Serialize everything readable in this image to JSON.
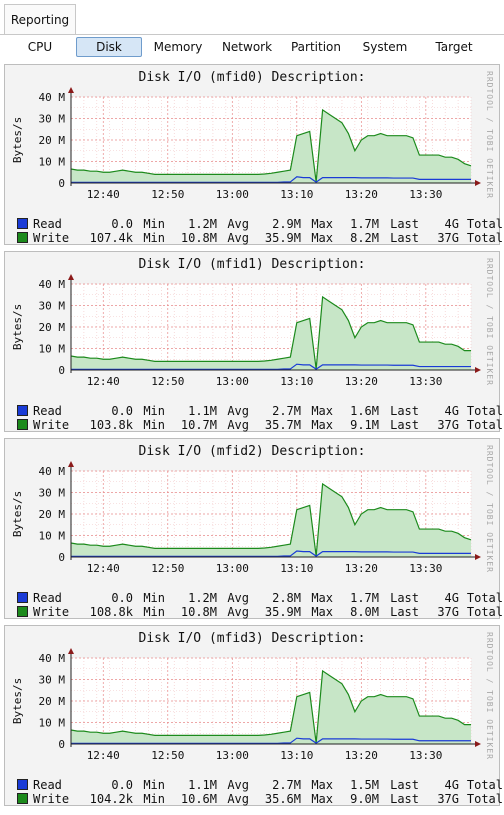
{
  "header": {
    "section_tab": "Reporting",
    "tabs": [
      {
        "label": "CPU",
        "active": false
      },
      {
        "label": "Disk",
        "active": true
      },
      {
        "label": "Memory",
        "active": false
      },
      {
        "label": "Network",
        "active": false
      },
      {
        "label": "Partition",
        "active": false
      },
      {
        "label": "System",
        "active": false
      },
      {
        "label": "Target",
        "active": false
      }
    ]
  },
  "colors": {
    "read": "#1a3bd6",
    "write": "#1c8a1c",
    "write_fill": "#c7e6c7",
    "grid": "#e88a8a"
  },
  "chart_data": [
    {
      "type": "area",
      "title": "Disk I/O (mfid0) Description:",
      "ylabel": "Bytes/s",
      "watermark": "RRDTOOL / TOBI OETIKER",
      "yticks": [
        "0",
        "10 M",
        "20 M",
        "30 M",
        "40 M"
      ],
      "ylim": [
        0,
        40
      ],
      "xticks": [
        "12:40",
        "12:50",
        "13:00",
        "13:10",
        "13:20",
        "13:30"
      ],
      "x": [
        "12:35",
        "12:36",
        "12:37",
        "12:38",
        "12:39",
        "12:40",
        "12:41",
        "12:42",
        "12:43",
        "12:44",
        "12:45",
        "12:46",
        "12:47",
        "12:48",
        "12:49",
        "12:50",
        "12:51",
        "12:52",
        "12:53",
        "12:54",
        "12:55",
        "12:56",
        "12:57",
        "12:58",
        "12:59",
        "13:00",
        "13:01",
        "13:02",
        "13:03",
        "13:04",
        "13:05",
        "13:06",
        "13:07",
        "13:08",
        "13:09",
        "13:10",
        "13:11",
        "13:12",
        "13:13",
        "13:14",
        "13:15",
        "13:16",
        "13:17",
        "13:18",
        "13:19",
        "13:20",
        "13:21",
        "13:22",
        "13:23",
        "13:24",
        "13:25",
        "13:26",
        "13:27",
        "13:28",
        "13:29",
        "13:30",
        "13:31",
        "13:32",
        "13:33",
        "13:34",
        "13:35",
        "13:36",
        "13:37"
      ],
      "series": [
        {
          "name": "Read",
          "values": [
            0.3,
            0.3,
            0.3,
            0.3,
            0.3,
            0.3,
            0.3,
            0.3,
            0.3,
            0.3,
            0.3,
            0.3,
            0.3,
            0.3,
            0.3,
            0.3,
            0.3,
            0.3,
            0.3,
            0.3,
            0.3,
            0.3,
            0.3,
            0.3,
            0.3,
            0.3,
            0.3,
            0.3,
            0.3,
            0.3,
            0.3,
            0.3,
            0.3,
            0.5,
            0.5,
            2.9,
            2.5,
            2.5,
            0.4,
            2.5,
            2.5,
            2.5,
            2.5,
            2.5,
            2.5,
            2.4,
            2.4,
            2.4,
            2.4,
            2.4,
            2.3,
            2.3,
            2.3,
            2.3,
            1.7,
            1.7,
            1.7,
            1.7,
            1.7,
            1.7,
            1.7,
            1.7,
            1.7
          ]
        },
        {
          "name": "Write",
          "values": [
            6.5,
            6,
            6,
            5.5,
            5.5,
            5,
            5,
            5.5,
            6,
            5.5,
            5,
            5,
            4.5,
            4,
            4,
            4,
            4,
            4,
            4,
            4,
            4,
            4,
            4,
            4,
            4,
            4,
            4,
            4,
            4,
            4,
            4.2,
            4.5,
            5,
            5.5,
            6,
            22,
            23,
            24,
            0.5,
            34,
            32,
            30,
            28,
            23,
            15,
            20,
            22,
            22,
            23,
            22,
            22,
            22,
            22,
            21,
            13,
            13,
            13,
            13,
            12,
            12,
            11,
            9,
            8
          ]
        }
      ],
      "legend": [
        {
          "name": "Read",
          "min": "0.0",
          "avg": "1.2M",
          "max": "2.9M",
          "last": "1.7M",
          "total": "4G"
        },
        {
          "name": "Write",
          "min": "107.4k",
          "avg": "10.8M",
          "max": "35.9M",
          "last": "8.2M",
          "total": "37G"
        }
      ]
    },
    {
      "type": "area",
      "title": "Disk I/O (mfid1) Description:",
      "ylabel": "Bytes/s",
      "watermark": "RRDTOOL / TOBI OETIKER",
      "yticks": [
        "0",
        "10 M",
        "20 M",
        "30 M",
        "40 M"
      ],
      "ylim": [
        0,
        40
      ],
      "xticks": [
        "12:40",
        "12:50",
        "13:00",
        "13:10",
        "13:20",
        "13:30"
      ],
      "x": [
        "12:35",
        "12:36",
        "12:37",
        "12:38",
        "12:39",
        "12:40",
        "12:41",
        "12:42",
        "12:43",
        "12:44",
        "12:45",
        "12:46",
        "12:47",
        "12:48",
        "12:49",
        "12:50",
        "12:51",
        "12:52",
        "12:53",
        "12:54",
        "12:55",
        "12:56",
        "12:57",
        "12:58",
        "12:59",
        "13:00",
        "13:01",
        "13:02",
        "13:03",
        "13:04",
        "13:05",
        "13:06",
        "13:07",
        "13:08",
        "13:09",
        "13:10",
        "13:11",
        "13:12",
        "13:13",
        "13:14",
        "13:15",
        "13:16",
        "13:17",
        "13:18",
        "13:19",
        "13:20",
        "13:21",
        "13:22",
        "13:23",
        "13:24",
        "13:25",
        "13:26",
        "13:27",
        "13:28",
        "13:29",
        "13:30",
        "13:31",
        "13:32",
        "13:33",
        "13:34",
        "13:35",
        "13:36",
        "13:37"
      ],
      "series": [
        {
          "name": "Read",
          "values": [
            0.3,
            0.3,
            0.3,
            0.3,
            0.3,
            0.3,
            0.3,
            0.3,
            0.3,
            0.3,
            0.3,
            0.3,
            0.3,
            0.3,
            0.3,
            0.3,
            0.3,
            0.3,
            0.3,
            0.3,
            0.3,
            0.3,
            0.3,
            0.3,
            0.3,
            0.3,
            0.3,
            0.3,
            0.3,
            0.3,
            0.3,
            0.3,
            0.3,
            0.5,
            0.5,
            2.7,
            2.4,
            2.4,
            0.4,
            2.4,
            2.4,
            2.4,
            2.4,
            2.4,
            2.4,
            2.3,
            2.3,
            2.3,
            2.3,
            2.3,
            2.2,
            2.2,
            2.2,
            2.2,
            1.6,
            1.6,
            1.6,
            1.6,
            1.6,
            1.6,
            1.6,
            1.6,
            1.6
          ]
        },
        {
          "name": "Write",
          "values": [
            6.5,
            6,
            6,
            5.5,
            5.5,
            5,
            5,
            5.5,
            6,
            5.5,
            5,
            5,
            4.5,
            4,
            4,
            4,
            4,
            4,
            4,
            4,
            4,
            4,
            4,
            4,
            4,
            4,
            4,
            4,
            4,
            4,
            4.2,
            4.5,
            5,
            5.5,
            6,
            22,
            23,
            24,
            0.5,
            34,
            32,
            30,
            28,
            23,
            15,
            20,
            22,
            22,
            23,
            22,
            22,
            22,
            22,
            21,
            13,
            13,
            13,
            13,
            12,
            12,
            11,
            9,
            9
          ]
        }
      ],
      "legend": [
        {
          "name": "Read",
          "min": "0.0",
          "avg": "1.1M",
          "max": "2.7M",
          "last": "1.6M",
          "total": "4G"
        },
        {
          "name": "Write",
          "min": "103.8k",
          "avg": "10.7M",
          "max": "35.7M",
          "last": "9.1M",
          "total": "37G"
        }
      ]
    },
    {
      "type": "area",
      "title": "Disk I/O (mfid2) Description:",
      "ylabel": "Bytes/s",
      "watermark": "RRDTOOL / TOBI OETIKER",
      "yticks": [
        "0",
        "10 M",
        "20 M",
        "30 M",
        "40 M"
      ],
      "ylim": [
        0,
        40
      ],
      "xticks": [
        "12:40",
        "12:50",
        "13:00",
        "13:10",
        "13:20",
        "13:30"
      ],
      "x": [
        "12:35",
        "12:36",
        "12:37",
        "12:38",
        "12:39",
        "12:40",
        "12:41",
        "12:42",
        "12:43",
        "12:44",
        "12:45",
        "12:46",
        "12:47",
        "12:48",
        "12:49",
        "12:50",
        "12:51",
        "12:52",
        "12:53",
        "12:54",
        "12:55",
        "12:56",
        "12:57",
        "12:58",
        "12:59",
        "13:00",
        "13:01",
        "13:02",
        "13:03",
        "13:04",
        "13:05",
        "13:06",
        "13:07",
        "13:08",
        "13:09",
        "13:10",
        "13:11",
        "13:12",
        "13:13",
        "13:14",
        "13:15",
        "13:16",
        "13:17",
        "13:18",
        "13:19",
        "13:20",
        "13:21",
        "13:22",
        "13:23",
        "13:24",
        "13:25",
        "13:26",
        "13:27",
        "13:28",
        "13:29",
        "13:30",
        "13:31",
        "13:32",
        "13:33",
        "13:34",
        "13:35",
        "13:36",
        "13:37"
      ],
      "series": [
        {
          "name": "Read",
          "values": [
            0.3,
            0.3,
            0.3,
            0.3,
            0.3,
            0.3,
            0.3,
            0.3,
            0.3,
            0.3,
            0.3,
            0.3,
            0.3,
            0.3,
            0.3,
            0.3,
            0.3,
            0.3,
            0.3,
            0.3,
            0.3,
            0.3,
            0.3,
            0.3,
            0.3,
            0.3,
            0.3,
            0.3,
            0.3,
            0.3,
            0.3,
            0.3,
            0.3,
            0.5,
            0.5,
            2.8,
            2.5,
            2.5,
            0.4,
            2.5,
            2.5,
            2.5,
            2.5,
            2.5,
            2.5,
            2.4,
            2.4,
            2.4,
            2.4,
            2.4,
            2.3,
            2.3,
            2.3,
            2.3,
            1.7,
            1.7,
            1.7,
            1.7,
            1.7,
            1.7,
            1.7,
            1.7,
            1.7
          ]
        },
        {
          "name": "Write",
          "values": [
            6.5,
            6,
            6,
            5.5,
            5.5,
            5,
            5,
            5.5,
            6,
            5.5,
            5,
            5,
            4.5,
            4,
            4,
            4,
            4,
            4,
            4,
            4,
            4,
            4,
            4,
            4,
            4,
            4,
            4,
            4,
            4,
            4,
            4.2,
            4.5,
            5,
            5.5,
            6,
            22,
            23,
            24,
            0.5,
            34,
            32,
            30,
            28,
            23,
            15,
            20,
            22,
            22,
            23,
            22,
            22,
            22,
            22,
            21,
            13,
            13,
            13,
            13,
            12,
            12,
            11,
            9,
            8
          ]
        }
      ],
      "legend": [
        {
          "name": "Read",
          "min": "0.0",
          "avg": "1.2M",
          "max": "2.8M",
          "last": "1.7M",
          "total": "4G"
        },
        {
          "name": "Write",
          "min": "108.8k",
          "avg": "10.8M",
          "max": "35.9M",
          "last": "8.0M",
          "total": "37G"
        }
      ]
    },
    {
      "type": "area",
      "title": "Disk I/O (mfid3) Description:",
      "ylabel": "Bytes/s",
      "watermark": "RRDTOOL / TOBI OETIKER",
      "yticks": [
        "0",
        "10 M",
        "20 M",
        "30 M",
        "40 M"
      ],
      "ylim": [
        0,
        40
      ],
      "xticks": [
        "12:40",
        "12:50",
        "13:00",
        "13:10",
        "13:20",
        "13:30"
      ],
      "x": [
        "12:35",
        "12:36",
        "12:37",
        "12:38",
        "12:39",
        "12:40",
        "12:41",
        "12:42",
        "12:43",
        "12:44",
        "12:45",
        "12:46",
        "12:47",
        "12:48",
        "12:49",
        "12:50",
        "12:51",
        "12:52",
        "12:53",
        "12:54",
        "12:55",
        "12:56",
        "12:57",
        "12:58",
        "12:59",
        "13:00",
        "13:01",
        "13:02",
        "13:03",
        "13:04",
        "13:05",
        "13:06",
        "13:07",
        "13:08",
        "13:09",
        "13:10",
        "13:11",
        "13:12",
        "13:13",
        "13:14",
        "13:15",
        "13:16",
        "13:17",
        "13:18",
        "13:19",
        "13:20",
        "13:21",
        "13:22",
        "13:23",
        "13:24",
        "13:25",
        "13:26",
        "13:27",
        "13:28",
        "13:29",
        "13:30",
        "13:31",
        "13:32",
        "13:33",
        "13:34",
        "13:35",
        "13:36",
        "13:37"
      ],
      "series": [
        {
          "name": "Read",
          "values": [
            0.3,
            0.3,
            0.3,
            0.3,
            0.3,
            0.3,
            0.3,
            0.3,
            0.3,
            0.3,
            0.3,
            0.3,
            0.3,
            0.3,
            0.3,
            0.3,
            0.3,
            0.3,
            0.3,
            0.3,
            0.3,
            0.3,
            0.3,
            0.3,
            0.3,
            0.3,
            0.3,
            0.3,
            0.3,
            0.3,
            0.3,
            0.3,
            0.3,
            0.5,
            0.5,
            2.7,
            2.4,
            2.4,
            0.4,
            2.4,
            2.4,
            2.4,
            2.4,
            2.4,
            2.4,
            2.3,
            2.3,
            2.3,
            2.3,
            2.3,
            2.2,
            2.2,
            2.2,
            2.2,
            1.5,
            1.5,
            1.5,
            1.5,
            1.5,
            1.5,
            1.5,
            1.5,
            1.5
          ]
        },
        {
          "name": "Write",
          "values": [
            6.5,
            6,
            6,
            5.5,
            5.5,
            5,
            5,
            5.5,
            6,
            5.5,
            5,
            5,
            4.5,
            4,
            4,
            4,
            4,
            4,
            4,
            4,
            4,
            4,
            4,
            4,
            4,
            4,
            4,
            4,
            4,
            4,
            4.2,
            4.5,
            5,
            5.5,
            6,
            22,
            23,
            24,
            0.5,
            34,
            32,
            30,
            28,
            23,
            15,
            20,
            22,
            22,
            23,
            22,
            22,
            22,
            22,
            21,
            13,
            13,
            13,
            13,
            12,
            12,
            11,
            9,
            9
          ]
        }
      ],
      "legend": [
        {
          "name": "Read",
          "min": "0.0",
          "avg": "1.1M",
          "max": "2.7M",
          "last": "1.5M",
          "total": "4G"
        },
        {
          "name": "Write",
          "min": "104.2k",
          "avg": "10.6M",
          "max": "35.6M",
          "last": "9.0M",
          "total": "37G"
        }
      ]
    }
  ]
}
